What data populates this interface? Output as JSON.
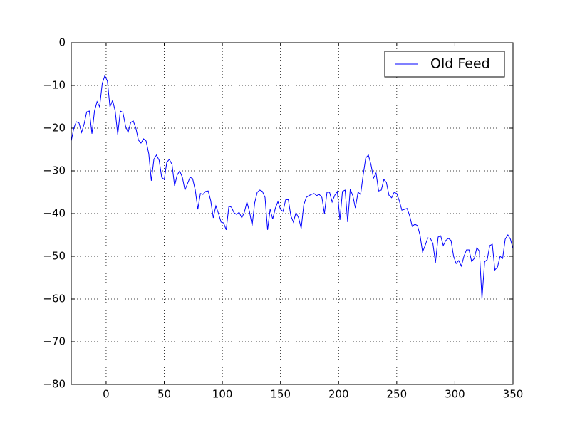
{
  "chart_data": {
    "type": "line",
    "x": [
      -30,
      -27.8,
      -25.6,
      -23.3,
      -21.1,
      -18.9,
      -16.7,
      -14.4,
      -12.2,
      -10,
      -7.8,
      -5.6,
      -3.3,
      -1.1,
      1.1,
      3.3,
      5.6,
      7.8,
      10,
      12.2,
      14.4,
      16.7,
      18.9,
      21.1,
      23.3,
      25.6,
      27.8,
      30,
      32.2,
      34.4,
      36.7,
      38.9,
      41.1,
      43.3,
      45.6,
      47.8,
      50,
      52.2,
      54.4,
      56.7,
      58.9,
      61.1,
      63.3,
      65.6,
      67.8,
      70,
      72.2,
      74.4,
      76.7,
      78.9,
      81.1,
      83.3,
      85.6,
      87.8,
      90,
      92.2,
      94.4,
      96.7,
      98.9,
      101.1,
      103.3,
      105.6,
      107.8,
      110,
      112.2,
      114.4,
      116.7,
      118.9,
      121.1,
      123.3,
      125.6,
      127.8,
      130,
      132.2,
      134.4,
      136.7,
      138.9,
      141.1,
      143.3,
      145.6,
      147.8,
      150,
      152.2,
      154.4,
      156.7,
      158.9,
      161.1,
      163.3,
      165.6,
      167.8,
      170,
      172.2,
      174.4,
      176.7,
      178.9,
      181.1,
      183.3,
      185.6,
      187.8,
      190,
      192.2,
      194.4,
      196.7,
      198.9,
      201.1,
      203.3,
      205.6,
      207.8,
      210,
      212.2,
      214.4,
      216.7,
      218.9,
      221.1,
      223.3,
      225.6,
      227.8,
      230,
      232.2,
      234.4,
      236.7,
      238.9,
      241.1,
      243.3,
      245.6,
      247.8,
      250,
      252.2,
      254.4,
      256.7,
      258.9,
      261.1,
      263.3,
      265.6,
      267.8,
      270,
      272.2,
      274.4,
      276.7,
      278.9,
      281.1,
      283.3,
      285.6,
      287.8,
      290,
      292.2,
      294.4,
      296.7,
      298.9,
      301.1,
      303.3,
      305.6,
      307.8,
      310,
      312.2,
      314.4,
      316.7,
      318.9,
      321.1,
      323.3,
      325.6,
      327.8,
      330,
      332.2,
      334.4,
      336.7,
      338.9,
      341.1,
      343.3,
      345.6,
      347.8,
      350
    ],
    "series": [
      {
        "name": "Old Feed",
        "color": "#0000ff",
        "values": [
          -23,
          -20,
          -18.5,
          -18.8,
          -21,
          -19,
          -16.2,
          -16,
          -21.3,
          -16,
          -13.8,
          -15,
          -9.5,
          -7.7,
          -9,
          -15,
          -13.5,
          -16,
          -21.5,
          -16,
          -16.3,
          -19.5,
          -21,
          -18.7,
          -18.3,
          -20,
          -22.8,
          -23.5,
          -22.5,
          -23,
          -26,
          -32.3,
          -27.3,
          -26.3,
          -27.5,
          -31.5,
          -32,
          -28,
          -27.3,
          -28.5,
          -33.5,
          -31,
          -30,
          -31.5,
          -34.5,
          -33,
          -31.5,
          -31.8,
          -34.5,
          -39,
          -35.3,
          -35.5,
          -34.8,
          -34.7,
          -37,
          -41,
          -38.2,
          -40,
          -42,
          -42.2,
          -43.8,
          -38.3,
          -38.5,
          -39.8,
          -40.2,
          -39.7,
          -41,
          -39.7,
          -37.3,
          -39.5,
          -42.8,
          -37.5,
          -35,
          -34.5,
          -34.8,
          -36.2,
          -43.8,
          -39,
          -41.3,
          -38.7,
          -37.2,
          -39,
          -39.5,
          -36.8,
          -36.7,
          -40.5,
          -42,
          -39.8,
          -41,
          -43.5,
          -38,
          -36.2,
          -35.8,
          -35.5,
          -35.3,
          -35.8,
          -35.5,
          -36.2,
          -40,
          -35,
          -35,
          -37.3,
          -35.7,
          -34.8,
          -41.5,
          -34.8,
          -34.5,
          -42,
          -34.3,
          -35.8,
          -38.7,
          -35,
          -35.5,
          -31,
          -27,
          -26.3,
          -28.5,
          -31.7,
          -30.5,
          -34.7,
          -34.5,
          -32,
          -32.7,
          -35.7,
          -36.3,
          -35,
          -35.3,
          -37,
          -39.2,
          -39,
          -38.8,
          -40.5,
          -43,
          -42.5,
          -42.8,
          -45,
          -49,
          -47.5,
          -45.7,
          -45.8,
          -47,
          -51.5,
          -45.5,
          -45.2,
          -47.5,
          -46.3,
          -45.8,
          -46.3,
          -50,
          -51.7,
          -51,
          -52.3,
          -50,
          -48.5,
          -48.5,
          -51.2,
          -50.5,
          -48,
          -48.8,
          -60,
          -51.3,
          -50.8,
          -47.5,
          -47.2,
          -53.2,
          -52.5,
          -50,
          -50.5,
          -46,
          -45,
          -46,
          -48.2
        ]
      }
    ],
    "xlim": [
      -30,
      350
    ],
    "xticks": [
      0,
      50,
      100,
      150,
      200,
      250,
      300,
      350
    ],
    "ylim": [
      -80,
      0
    ],
    "yticks": [
      {
        "value": -80,
        "label": "−80"
      },
      {
        "value": -70,
        "label": "−70"
      },
      {
        "value": -60,
        "label": "−60"
      },
      {
        "value": -50,
        "label": "−50"
      },
      {
        "value": -40,
        "label": "−40"
      },
      {
        "value": -30,
        "label": "−30"
      },
      {
        "value": -20,
        "label": "−20"
      },
      {
        "value": -10,
        "label": "−10"
      },
      0
    ],
    "grid": true,
    "legend": "upper right"
  }
}
